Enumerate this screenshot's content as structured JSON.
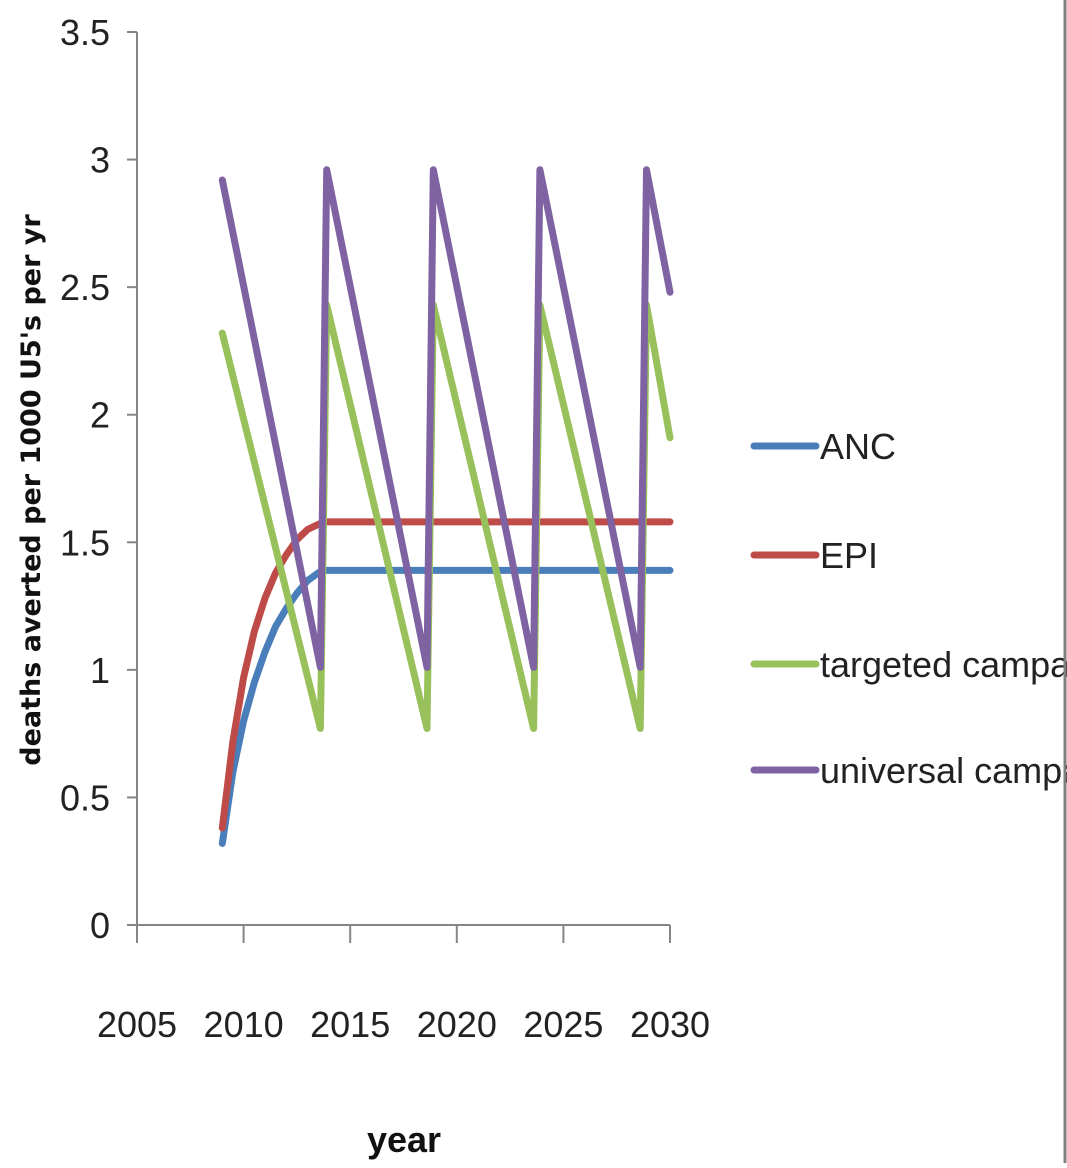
{
  "chart_data": {
    "type": "line",
    "title": "",
    "xlabel": "year",
    "ylabel": "deaths averted per 1000 U5's per yr",
    "xlim": [
      2005,
      2030
    ],
    "ylim": [
      0,
      3.5
    ],
    "x_ticks": [
      2005,
      2010,
      2015,
      2020,
      2025,
      2030
    ],
    "x_tick_labels": [
      "2005",
      "2010",
      "2015",
      "2020",
      "2025",
      "2030"
    ],
    "y_ticks": [
      0,
      0.5,
      1,
      1.5,
      2,
      2.5,
      3,
      3.5
    ],
    "y_tick_labels": [
      "0",
      "0.5",
      "1",
      "1.5",
      "2",
      "2.5",
      "3",
      "3.5"
    ],
    "grid": false,
    "legend_position": "right",
    "series": [
      {
        "name": "ANC",
        "color": "#4a7ebb",
        "x": [
          2009,
          2009.5,
          2010,
          2010.5,
          2011,
          2011.5,
          2012,
          2012.5,
          2013,
          2013.5,
          2013.8,
          2030
        ],
        "y": [
          0.32,
          0.6,
          0.8,
          0.95,
          1.07,
          1.17,
          1.24,
          1.3,
          1.35,
          1.38,
          1.39,
          1.39
        ]
      },
      {
        "name": "EPI",
        "color": "#be4b48",
        "x": [
          2009,
          2009.5,
          2010,
          2010.5,
          2011,
          2011.5,
          2012,
          2012.5,
          2013,
          2013.5,
          2013.8,
          2030
        ],
        "y": [
          0.38,
          0.72,
          0.97,
          1.15,
          1.28,
          1.38,
          1.45,
          1.51,
          1.55,
          1.57,
          1.58,
          1.58
        ]
      },
      {
        "name": "targeted campaign",
        "color": "#98c15b",
        "x": [
          2009,
          2013.6,
          2013.9,
          2018.6,
          2018.9,
          2023.6,
          2023.9,
          2028.6,
          2028.9,
          2030
        ],
        "y": [
          2.32,
          0.77,
          2.43,
          0.77,
          2.43,
          0.77,
          2.43,
          0.77,
          2.43,
          1.91
        ]
      },
      {
        "name": "universal campaign",
        "color": "#7f62a2",
        "x": [
          2009,
          2013.6,
          2013.9,
          2018.6,
          2018.9,
          2023.6,
          2023.9,
          2028.6,
          2028.9,
          2030
        ],
        "y": [
          2.92,
          1.01,
          2.96,
          1.01,
          2.96,
          1.01,
          2.96,
          1.01,
          2.96,
          2.48
        ]
      }
    ]
  }
}
